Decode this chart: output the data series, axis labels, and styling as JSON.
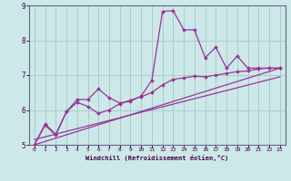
{
  "bg_color": "#cce8e8",
  "grid_color": "#aacccc",
  "line_color": "#993399",
  "spine_color": "#666688",
  "tick_color": "#440044",
  "xlabel": "Windchill (Refroidissement éolien,°C)",
  "xlim": [
    -0.5,
    23.5
  ],
  "ylim": [
    5,
    9
  ],
  "yticks": [
    5,
    6,
    7,
    8,
    9
  ],
  "xticks": [
    0,
    1,
    2,
    3,
    4,
    5,
    6,
    7,
    8,
    9,
    10,
    11,
    12,
    13,
    14,
    15,
    16,
    17,
    18,
    19,
    20,
    21,
    22,
    23
  ],
  "line1_x": [
    0,
    1,
    2,
    3,
    4,
    5,
    6,
    7,
    8,
    9,
    10,
    11,
    12,
    13,
    14,
    15,
    16,
    17,
    18,
    19,
    20,
    21,
    22,
    23
  ],
  "line1_y": [
    5.0,
    5.6,
    5.3,
    5.95,
    6.3,
    6.3,
    6.6,
    6.35,
    6.2,
    6.25,
    6.4,
    6.85,
    8.83,
    8.85,
    8.3,
    8.3,
    7.5,
    7.8,
    7.2,
    7.55,
    7.2,
    7.2,
    7.2,
    7.2
  ],
  "line2_x": [
    0,
    1,
    2,
    3,
    4,
    5,
    6,
    7,
    8,
    9,
    10,
    11,
    12,
    13,
    14,
    15,
    16,
    17,
    18,
    19,
    20,
    21,
    22,
    23
  ],
  "line2_y": [
    5.0,
    5.56,
    5.28,
    5.95,
    6.22,
    6.1,
    5.9,
    6.0,
    6.18,
    6.28,
    6.38,
    6.5,
    6.72,
    6.88,
    6.92,
    6.97,
    6.95,
    7.0,
    7.05,
    7.1,
    7.12,
    7.18,
    7.2,
    7.2
  ],
  "line3_x": [
    0,
    23
  ],
  "line3_y": [
    5.0,
    7.2
  ],
  "line4_x": [
    0,
    23
  ],
  "line4_y": [
    5.15,
    6.95
  ]
}
